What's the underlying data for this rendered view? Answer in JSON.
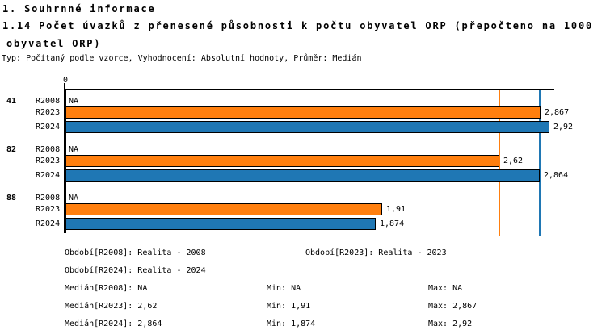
{
  "header": {
    "line1": "1. Souhrnné informace",
    "line2": "1.14 Počet úvazků z přenesené působnosti k počtu obyvatel ORP (přepočteno na 1000",
    "line3": "obyvatel ORP)",
    "meta": "Typ: Počítaný podle vzorce, Vyhodnocení: Absolutní hodnoty, Průměr: Medián"
  },
  "chart_data": {
    "type": "bar",
    "orientation": "horizontal",
    "x_axis": {
      "zero_label": "0",
      "min": 0,
      "max_shown": 2.96,
      "grid": false
    },
    "series_legend": [
      "R2008",
      "R2023",
      "R2024"
    ],
    "colors": {
      "R2023": "#ff7f0e",
      "R2024": "#1f77b4"
    },
    "groups": [
      {
        "label": "41",
        "rows": [
          {
            "series": "R2008",
            "value": null,
            "display": "NA"
          },
          {
            "series": "R2023",
            "value": 2.867,
            "display": "2,867",
            "color": "#ff7f0e"
          },
          {
            "series": "R2024",
            "value": 2.92,
            "display": "2,92",
            "color": "#1f77b4"
          }
        ]
      },
      {
        "label": "82",
        "rows": [
          {
            "series": "R2008",
            "value": null,
            "display": "NA"
          },
          {
            "series": "R2023",
            "value": 2.62,
            "display": "2,62",
            "color": "#ff7f0e"
          },
          {
            "series": "R2024",
            "value": 2.864,
            "display": "2,864",
            "color": "#1f77b4"
          }
        ]
      },
      {
        "label": "88",
        "rows": [
          {
            "series": "R2008",
            "value": null,
            "display": "NA"
          },
          {
            "series": "R2023",
            "value": 1.91,
            "display": "1,91",
            "color": "#ff7f0e"
          },
          {
            "series": "R2024",
            "value": 1.874,
            "display": "1,874",
            "color": "#1f77b4"
          }
        ]
      }
    ],
    "reference_lines": [
      {
        "name": "median-R2023",
        "value": 2.62,
        "color": "#ff7f0e"
      },
      {
        "name": "median-R2024",
        "value": 2.864,
        "color": "#1f77b4"
      }
    ]
  },
  "footer": {
    "obdobi_r2008": "Období[R2008]: Realita - 2008",
    "obdobi_r2023": "Období[R2023]: Realita - 2023",
    "obdobi_r2024": "Období[R2024]: Realita - 2024",
    "median_r2008": "Medián[R2008]: NA",
    "min_r2008": "Min: NA",
    "max_r2008": "Max: NA",
    "median_r2023": "Medián[R2023]: 2,62",
    "min_r2023": "Min: 1,91",
    "max_r2023": "Max: 2,867",
    "median_r2024": "Medián[R2024]: 2,864",
    "min_r2024": "Min: 1,874",
    "max_r2024": "Max: 2,92"
  }
}
